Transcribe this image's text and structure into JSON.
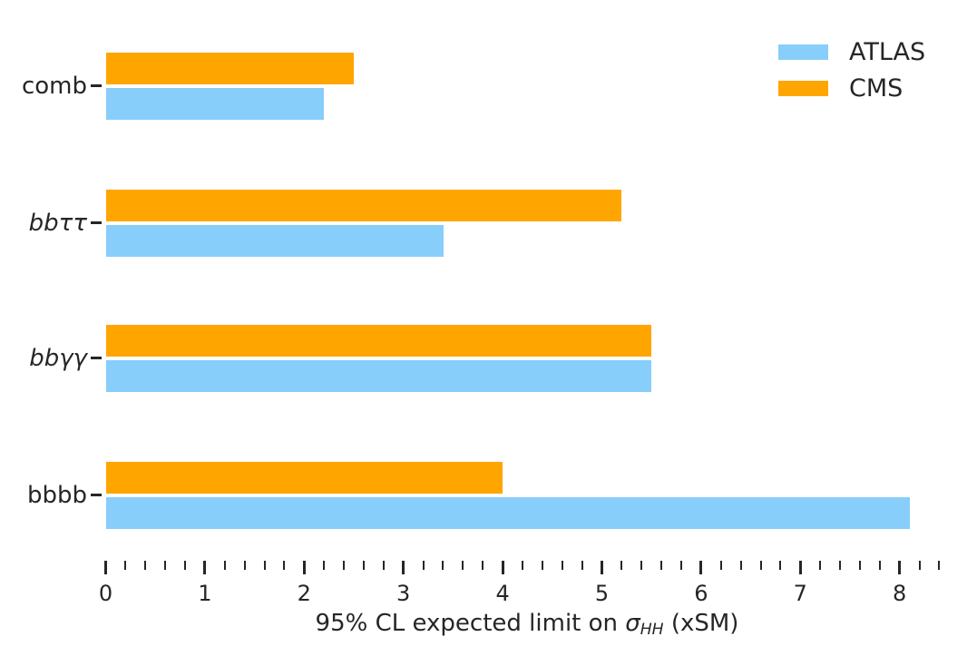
{
  "chart_data": {
    "type": "bar",
    "orientation": "horizontal",
    "title": "",
    "xlabel": "95% CL expected limit on σ_HH (xSM)",
    "xlabel_parts": {
      "prefix": "95% CL expected limit on ",
      "sigma": "σ",
      "subscript": "HH",
      "suffix": " (xSM)"
    },
    "categories_order": "top-to-bottom",
    "categories": [
      {
        "label": "comb",
        "italic": false
      },
      {
        "label": "bbττ",
        "italic": true
      },
      {
        "label": "bbγγ",
        "italic": true
      },
      {
        "label": "bbbb",
        "italic": false
      }
    ],
    "series": [
      {
        "name": "ATLAS",
        "color": "#87CEFA",
        "values": [
          2.2,
          3.4,
          5.5,
          8.1
        ]
      },
      {
        "name": "CMS",
        "color": "#FFA500",
        "values": [
          2.5,
          5.2,
          5.5,
          4.0
        ]
      }
    ],
    "xlim": [
      0,
      8.5
    ],
    "x_major_ticks": [
      0,
      1,
      2,
      3,
      4,
      5,
      6,
      7,
      8
    ],
    "x_minor_tick_step": 0.2,
    "grid": false,
    "legend_position": "upper right"
  },
  "colors": {
    "background": "#ffffff",
    "text": "#262626",
    "tick": "#262626"
  }
}
